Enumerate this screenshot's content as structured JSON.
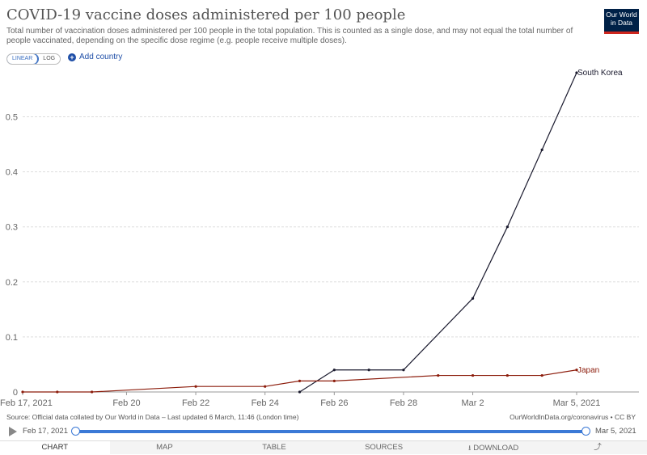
{
  "header": {
    "title": "COVID-19 vaccine doses administered per 100 people",
    "subtitle": "Total number of vaccination doses administered per 100 people in the total population. This is counted as a single dose, and may not equal the total number of people vaccinated, depending on the specific dose regime (e.g. people receive multiple doses).",
    "logo_line1": "Our World",
    "logo_line2": "in Data"
  },
  "controls": {
    "linear_label": "LINEAR",
    "log_label": "LOG",
    "add_country_label": "Add country"
  },
  "chart_data": {
    "type": "line",
    "title": "COVID-19 vaccine doses administered per 100 people",
    "x_type": "date",
    "xlim": [
      "2021-02-17",
      "2021-03-05"
    ],
    "ylim": [
      0,
      0.58
    ],
    "grid": "horizontal-dashed",
    "x_ticks": [
      {
        "date": "2021-02-17",
        "label": "Feb 17, 2021"
      },
      {
        "date": "2021-02-20",
        "label": "Feb 20"
      },
      {
        "date": "2021-02-22",
        "label": "Feb 22"
      },
      {
        "date": "2021-02-24",
        "label": "Feb 24"
      },
      {
        "date": "2021-02-26",
        "label": "Feb 26"
      },
      {
        "date": "2021-02-28",
        "label": "Feb 28"
      },
      {
        "date": "2021-03-02",
        "label": "Mar 2"
      },
      {
        "date": "2021-03-05",
        "label": "Mar 5, 2021"
      }
    ],
    "y_ticks": [
      0,
      0.1,
      0.2,
      0.3,
      0.4,
      0.5
    ],
    "y_tick_labels": [
      "0",
      "0.1",
      "0.2",
      "0.3",
      "0.4",
      "0.5"
    ],
    "series": [
      {
        "name": "South Korea",
        "color": "#1a1a2e",
        "points": [
          {
            "x": "2021-02-25",
            "y": 0
          },
          {
            "x": "2021-02-26",
            "y": 0.04
          },
          {
            "x": "2021-02-27",
            "y": 0.04
          },
          {
            "x": "2021-02-28",
            "y": 0.04
          },
          {
            "x": "2021-03-02",
            "y": 0.17
          },
          {
            "x": "2021-03-03",
            "y": 0.3
          },
          {
            "x": "2021-03-04",
            "y": 0.44
          },
          {
            "x": "2021-03-05",
            "y": 0.58
          }
        ]
      },
      {
        "name": "Japan",
        "color": "#8c1c0b",
        "points": [
          {
            "x": "2021-02-17",
            "y": 0
          },
          {
            "x": "2021-02-18",
            "y": 0
          },
          {
            "x": "2021-02-19",
            "y": 0
          },
          {
            "x": "2021-02-22",
            "y": 0.01
          },
          {
            "x": "2021-02-24",
            "y": 0.01
          },
          {
            "x": "2021-02-25",
            "y": 0.02
          },
          {
            "x": "2021-02-26",
            "y": 0.02
          },
          {
            "x": "2021-03-01",
            "y": 0.03
          },
          {
            "x": "2021-03-02",
            "y": 0.03
          },
          {
            "x": "2021-03-03",
            "y": 0.03
          },
          {
            "x": "2021-03-04",
            "y": 0.03
          },
          {
            "x": "2021-03-05",
            "y": 0.04
          }
        ]
      }
    ]
  },
  "footer": {
    "source": "Source: Official data collated by Our World in Data – Last updated 6 March, 11:46 (London time)",
    "url_license": "OurWorldInData.org/coronavirus • CC BY"
  },
  "timeline": {
    "start_label": "Feb 17, 2021",
    "end_label": "Mar 5, 2021"
  },
  "tabs": {
    "chart": "CHART",
    "map": "MAP",
    "table": "TABLE",
    "sources": "SOURCES",
    "download": "DOWNLOAD"
  },
  "icons": {
    "play": "play-icon",
    "share": "share-icon",
    "download": "download-icon"
  }
}
